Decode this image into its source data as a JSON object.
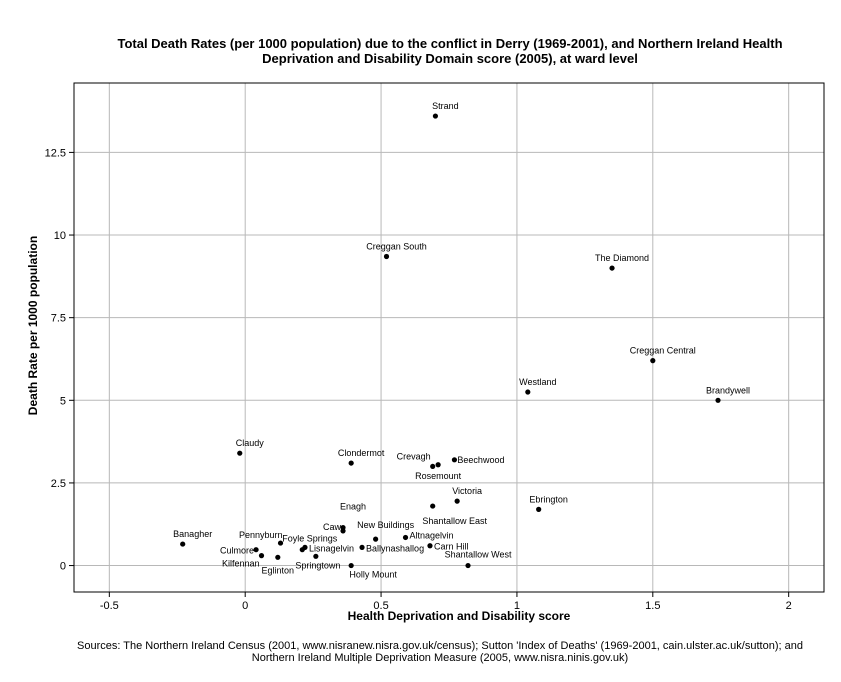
{
  "chart_data": {
    "type": "scatter",
    "title_lines": [
      "Total Death Rates (per 1000 population) due to the conflict in Derry (1969-2001), and Northern Ireland Health",
      "Deprivation and Disability Domain score (2005), at ward level"
    ],
    "xlabel": "Health Deprivation and Disability score",
    "ylabel": "Death Rate per 1000 population",
    "xlim": [
      -0.63,
      2.13
    ],
    "ylim": [
      -0.8,
      14.6
    ],
    "x_ticks": [
      -0.5,
      0,
      0.5,
      1,
      1.5,
      2
    ],
    "x_tick_labels": [
      "-0.5",
      "0",
      "0.5",
      "1",
      "1.5",
      "2"
    ],
    "y_ticks": [
      0,
      2.5,
      5,
      7.5,
      10,
      12.5
    ],
    "y_tick_labels": [
      "0",
      "2.5",
      "5",
      "7.5",
      "10",
      "12.5"
    ],
    "grid": true,
    "points": [
      {
        "label": "Strand",
        "x": 0.7,
        "y": 13.6
      },
      {
        "label": "Creggan South",
        "x": 0.52,
        "y": 9.35
      },
      {
        "label": "The Diamond",
        "x": 1.35,
        "y": 9.0
      },
      {
        "label": "Creggan Central",
        "x": 1.5,
        "y": 6.2
      },
      {
        "label": "Westland",
        "x": 1.04,
        "y": 5.25
      },
      {
        "label": "Brandywell",
        "x": 1.74,
        "y": 5.0
      },
      {
        "label": "Claudy",
        "x": -0.02,
        "y": 3.4
      },
      {
        "label": "Clondermot",
        "x": 0.39,
        "y": 3.1
      },
      {
        "label": "Crevagh",
        "x": 0.69,
        "y": 3.0
      },
      {
        "label": "Rosemount",
        "x": 0.71,
        "y": 3.05
      },
      {
        "label": "Beechwood",
        "x": 0.77,
        "y": 3.2
      },
      {
        "label": "Victoria",
        "x": 0.78,
        "y": 1.95
      },
      {
        "label": "Shantallow East",
        "x": 0.69,
        "y": 1.8
      },
      {
        "label": "Ebrington",
        "x": 1.08,
        "y": 1.7
      },
      {
        "label": "Enagh",
        "x": 0.36,
        "y": 1.15
      },
      {
        "label": "Caw",
        "x": 0.36,
        "y": 1.05
      },
      {
        "label": "New Buildings",
        "x": 0.48,
        "y": 0.8
      },
      {
        "label": "Altnagelvin",
        "x": 0.59,
        "y": 0.85
      },
      {
        "label": "Carn Hill",
        "x": 0.68,
        "y": 0.6
      },
      {
        "label": "Ballynashallog",
        "x": 0.43,
        "y": 0.55
      },
      {
        "label": "Shantallow West",
        "x": 0.82,
        "y": 0.0
      },
      {
        "label": "Holly Mount",
        "x": 0.39,
        "y": 0.0
      },
      {
        "label": "Springtown",
        "x": 0.26,
        "y": 0.28
      },
      {
        "label": "Lisnagelvin",
        "x": 0.22,
        "y": 0.55
      },
      {
        "label": "Foyle Springs",
        "x": 0.21,
        "y": 0.48
      },
      {
        "label": "Pennyburn",
        "x": 0.13,
        "y": 0.68
      },
      {
        "label": "Eglinton",
        "x": 0.12,
        "y": 0.25
      },
      {
        "label": "Culmore",
        "x": 0.04,
        "y": 0.48
      },
      {
        "label": "Kilfennan",
        "x": 0.06,
        "y": 0.3
      },
      {
        "label": "Banagher",
        "x": -0.23,
        "y": 0.65
      }
    ]
  },
  "source_lines": [
    "Sources: The Northern Ireland Census (2001, www.nisranew.nisra.gov.uk/census); Sutton 'Index of Deaths' (1969-2001, cain.ulster.ac.uk/sutton); and",
    "Northern Ireland Multiple Deprivation Measure (2005, www.nisra.ninis.gov.uk)"
  ]
}
